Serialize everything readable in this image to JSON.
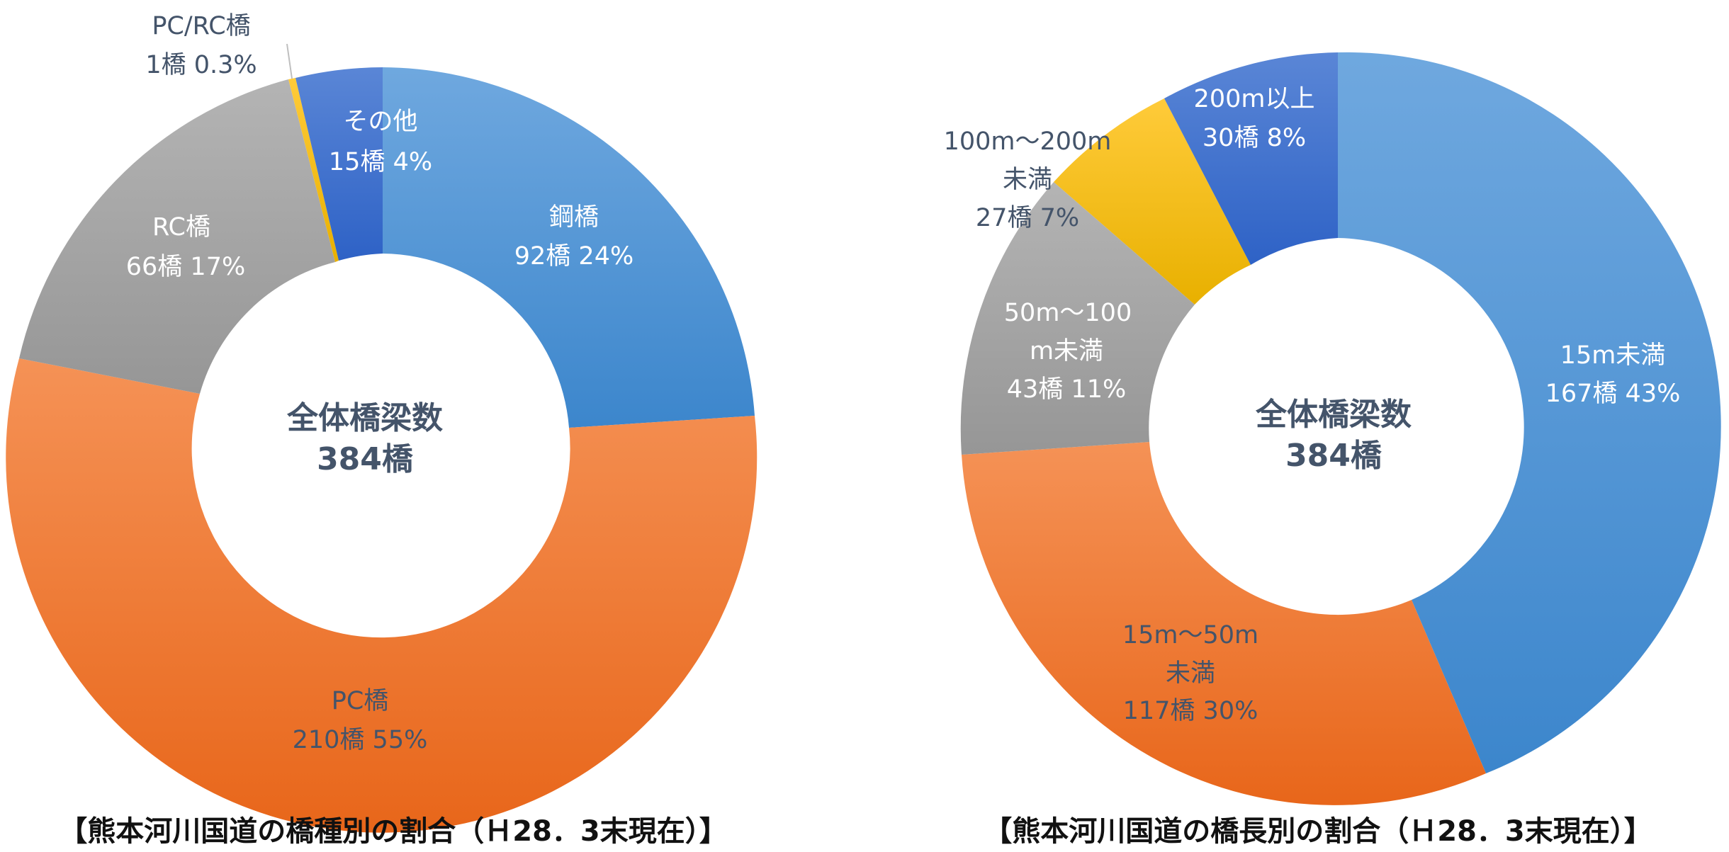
{
  "chart_data": [
    {
      "type": "pie",
      "variant": "donut",
      "center_label": {
        "line1": "全体橋梁数",
        "line2": "384橋"
      },
      "caption": "【熊本河川国道の橋種別の割合（Ｈ28．3末現在）】",
      "slices": [
        {
          "name": "鋼橋",
          "count": 92,
          "percent": 24,
          "line1": "鋼橋",
          "line2": "92橋 24%",
          "color": "#4A90D9"
        },
        {
          "name": "PC橋",
          "count": 210,
          "percent": 55,
          "line1": "PC橋",
          "line2": "210橋 55%",
          "color": "#F07A2C"
        },
        {
          "name": "RC橋",
          "count": 66,
          "percent": 17,
          "line1": "RC橋",
          "line2": "66橋 17%",
          "color": "#A5A5A5"
        },
        {
          "name": "PC/RC橋",
          "count": 1,
          "percent": 0.3,
          "line1": "PC/RC橋",
          "line2": "1橋 0.3%",
          "color": "#FFC000"
        },
        {
          "name": "その他",
          "count": 15,
          "percent": 4,
          "line1": "その他",
          "line2": "15橋 4%",
          "color": "#3B6FD0"
        }
      ]
    },
    {
      "type": "pie",
      "variant": "donut",
      "center_label": {
        "line1": "全体橋梁数",
        "line2": "384橋"
      },
      "caption": "【熊本河川国道の橋長別の割合（Ｈ28．3末現在）】",
      "slices": [
        {
          "name": "15m未満",
          "count": 167,
          "percent": 43,
          "lines": [
            "15m未満",
            "167橋 43%"
          ],
          "color": "#4A90D9"
        },
        {
          "name": "15m～50m未満",
          "count": 117,
          "percent": 30,
          "lines": [
            "15m～50m",
            "未満",
            "117橋 30%"
          ],
          "color": "#F07A2C"
        },
        {
          "name": "50m～100m未満",
          "count": 43,
          "percent": 11,
          "lines": [
            "50m～100",
            "m未満",
            "43橋 11%"
          ],
          "color": "#A5A5A5"
        },
        {
          "name": "100m～200m未満",
          "count": 27,
          "percent": 7,
          "lines": [
            "100m～200m",
            "未満",
            "27橋 7%"
          ],
          "color": "#FFC000"
        },
        {
          "name": "200m以上",
          "count": 30,
          "percent": 8,
          "lines": [
            "200m以上",
            "30橋 8%"
          ],
          "color": "#3B6FD0"
        }
      ]
    }
  ]
}
